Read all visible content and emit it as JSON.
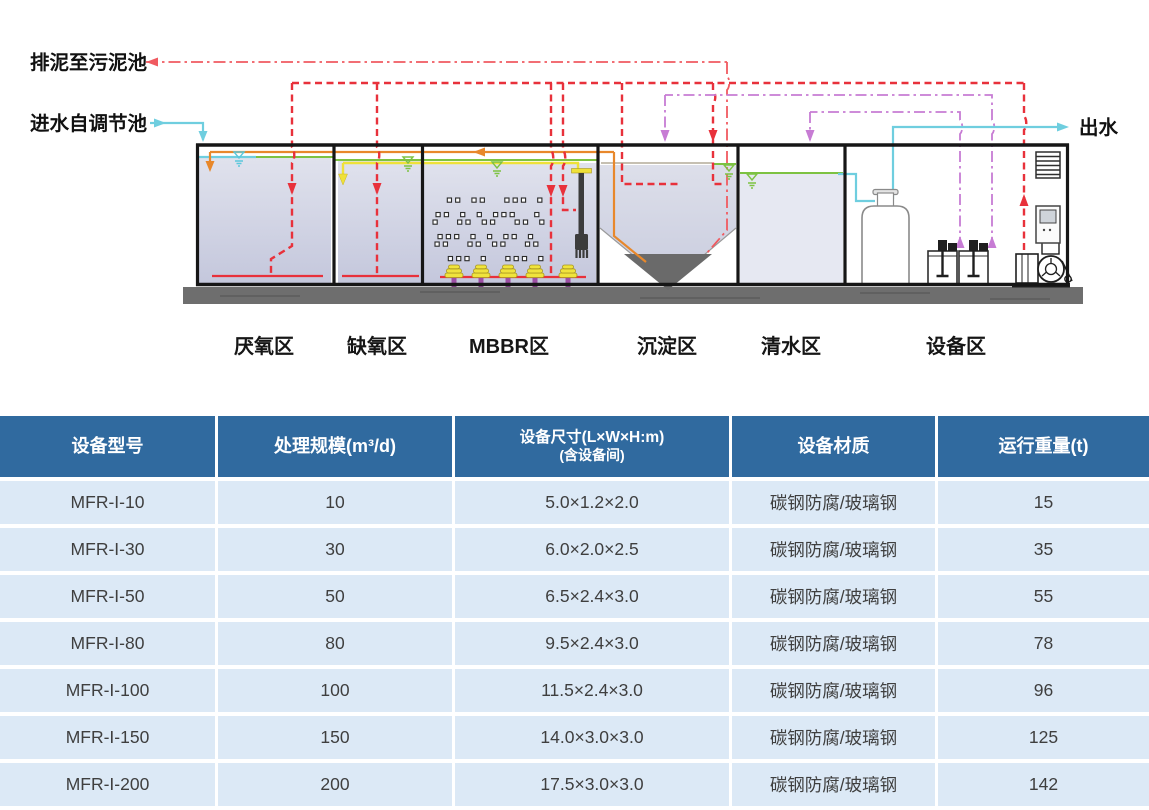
{
  "diagram": {
    "labels": {
      "sludge_out": "排泥至污泥池",
      "inflow": "进水自调节池",
      "outflow": "出水"
    },
    "zones": [
      {
        "label": "厌氧区"
      },
      {
        "label": "缺氧区"
      },
      {
        "label": "MBBR区"
      },
      {
        "label": "沉淀区"
      },
      {
        "label": "清水区"
      },
      {
        "label": "设备区"
      }
    ],
    "colors": {
      "recirculation_red": "#E8313B",
      "sludge_line_red": "#F05A60",
      "return_sludge_orange": "#E8882B",
      "air_yellow": "#EFE139",
      "water_level_green": "#7DC242",
      "water_cyan": "#6FCEDF",
      "dosing_purple": "#C77CD4",
      "tank_fill_lavender": "#CBCEDF",
      "base_gray": "#6E6E6E"
    }
  },
  "table": {
    "columns": [
      {
        "label": "设备型号"
      },
      {
        "label": "处理规模(m³/d)"
      },
      {
        "label": "设备尺寸(L×W×H:m)",
        "sublabel": "(含设备间)"
      },
      {
        "label": "设备材质"
      },
      {
        "label": "运行重量(t)"
      }
    ],
    "header_bg": "#306A9F",
    "row_bg": "#DCE9F6",
    "rows": [
      [
        "MFR-I-10",
        "10",
        "5.0×1.2×2.0",
        "碳钢防腐/玻璃钢",
        "15"
      ],
      [
        "MFR-I-30",
        "30",
        "6.0×2.0×2.5",
        "碳钢防腐/玻璃钢",
        "35"
      ],
      [
        "MFR-I-50",
        "50",
        "6.5×2.4×3.0",
        "碳钢防腐/玻璃钢",
        "55"
      ],
      [
        "MFR-I-80",
        "80",
        "9.5×2.4×3.0",
        "碳钢防腐/玻璃钢",
        "78"
      ],
      [
        "MFR-I-100",
        "100",
        "11.5×2.4×3.0",
        "碳钢防腐/玻璃钢",
        "96"
      ],
      [
        "MFR-I-150",
        "150",
        "14.0×3.0×3.0",
        "碳钢防腐/玻璃钢",
        "125"
      ],
      [
        "MFR-I-200",
        "200",
        "17.5×3.0×3.0",
        "碳钢防腐/玻璃钢",
        "142"
      ]
    ]
  }
}
